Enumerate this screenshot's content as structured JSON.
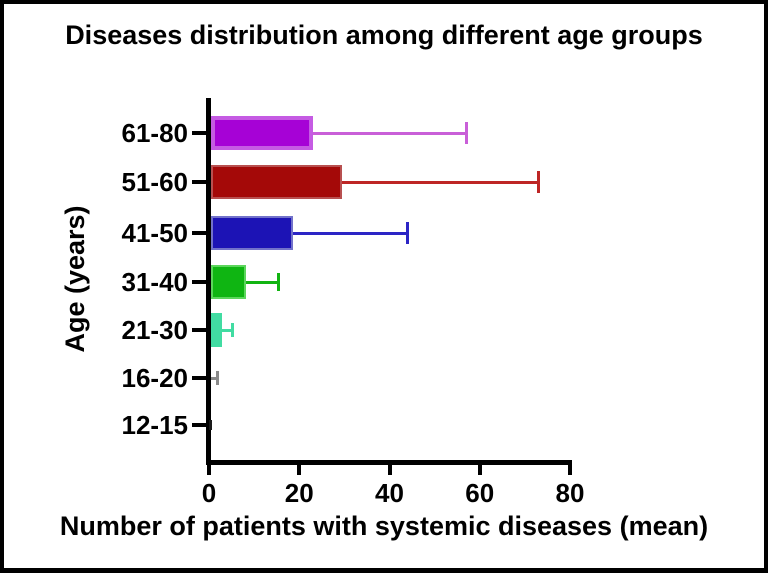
{
  "frame": {
    "background_color": "#ffffff",
    "border_color": "#000000"
  },
  "chart_data": {
    "type": "bar",
    "orientation": "horizontal",
    "title": "Diseases distribution among different age groups",
    "xlabel": "Number of patients with systemic diseases (mean)",
    "ylabel": "Age (years)",
    "xlim": [
      0,
      80
    ],
    "x_ticks": [
      "0",
      "20",
      "40",
      "60",
      "80"
    ],
    "grid": false,
    "legend_position": "none",
    "error_bars": "upper whisker with end cap",
    "rows_top_to_bottom": [
      {
        "label": "61-80",
        "mean": 23,
        "error_upper": 57,
        "fill": "#a602d6",
        "edge": "#c55be3",
        "error_color": "#c95fd8"
      },
      {
        "label": "51-60",
        "mean": 29.5,
        "error_upper": 73,
        "fill": "#a40908",
        "edge": "#b85050",
        "error_color": "#be2625"
      },
      {
        "label": "41-50",
        "mean": 18.6,
        "error_upper": 44,
        "fill": "#1c13b5",
        "edge": "#7272ca",
        "error_color": "#2c25c5"
      },
      {
        "label": "31-40",
        "mean": 8.2,
        "error_upper": 15.5,
        "fill": "#0fb512",
        "edge": "#5cd65c",
        "error_color": "#12b412"
      },
      {
        "label": "21-30",
        "mean": 2.9,
        "error_upper": 5.1,
        "fill": "#41dca2",
        "edge": "#41dca2",
        "error_color": "#41dca2"
      },
      {
        "label": "16-20",
        "mean": 0.4,
        "error_upper": 1.8,
        "fill": "#666666",
        "edge": "#666666",
        "error_color": "#8a8a8a"
      },
      {
        "label": "12-15",
        "mean": 0.15,
        "error_upper": 0.35,
        "fill": "#1a1a1a",
        "edge": "#1a1a1a",
        "error_color": "#1a1a1a"
      }
    ]
  }
}
